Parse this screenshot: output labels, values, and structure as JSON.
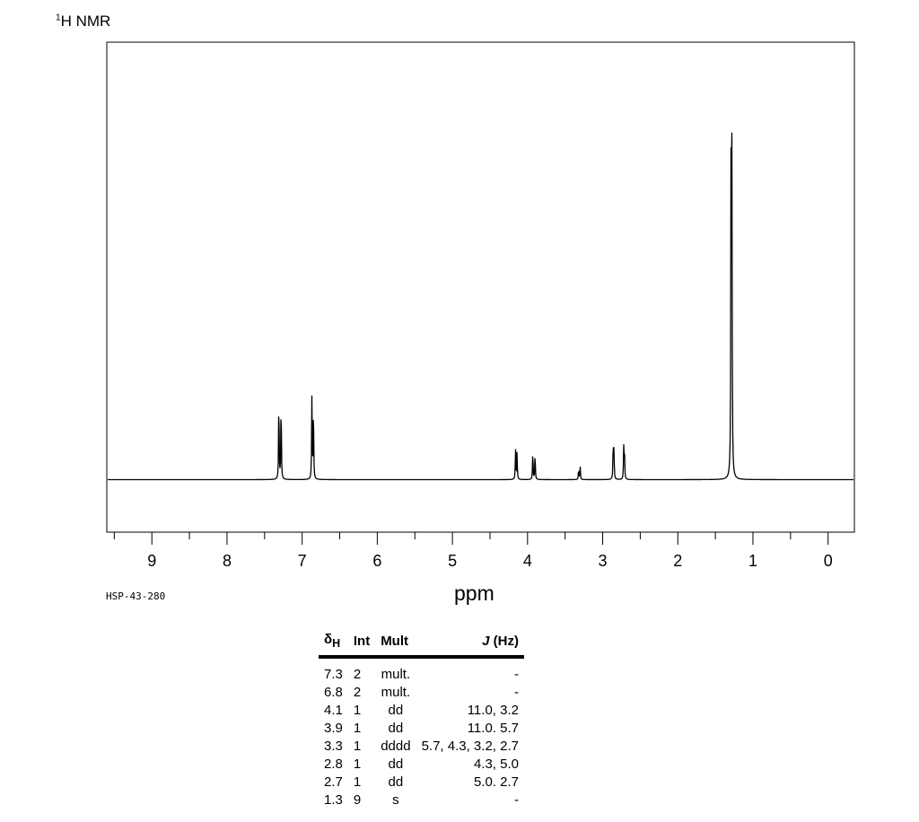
{
  "title_main": "H NMR",
  "title_sup": "1",
  "sample_id": "HSP-43-280",
  "chart_data": {
    "type": "line",
    "xlabel": "ppm",
    "xlim": [
      9.6,
      -0.35
    ],
    "x_ticks": [
      9,
      8,
      7,
      6,
      5,
      4,
      3,
      2,
      1,
      0
    ],
    "x_minor_step": 0.5,
    "ylim": [
      -0.12,
      1.0
    ],
    "baseline": 0.0,
    "peaks": [
      {
        "ppm": 7.31,
        "height": 0.2
      },
      {
        "ppm": 7.28,
        "height": 0.195
      },
      {
        "ppm": 6.87,
        "height": 0.19
      },
      {
        "ppm": 6.85,
        "height": 0.185
      },
      {
        "ppm": 4.16,
        "height": 0.07
      },
      {
        "ppm": 4.14,
        "height": 0.066
      },
      {
        "ppm": 3.93,
        "height": 0.068
      },
      {
        "ppm": 3.9,
        "height": 0.064
      },
      {
        "ppm": 3.32,
        "height": 0.025
      },
      {
        "ppm": 3.3,
        "height": 0.03
      },
      {
        "ppm": 2.86,
        "height": 0.085
      },
      {
        "ppm": 2.85,
        "height": 0.065
      },
      {
        "ppm": 2.72,
        "height": 0.072
      },
      {
        "ppm": 2.71,
        "height": 0.062
      },
      {
        "ppm": 1.29,
        "height": 0.95
      },
      {
        "ppm": 1.28,
        "height": 0.66
      }
    ]
  },
  "table": {
    "headers": {
      "shift": "δ",
      "shift_sub": "H",
      "int": "Int",
      "mult": "Mult",
      "j": "J",
      "j_unit": " (Hz)"
    },
    "rows": [
      {
        "shift": "7.3",
        "int": "2",
        "mult": "mult.",
        "j": "-"
      },
      {
        "shift": "6.8",
        "int": "2",
        "mult": "mult.",
        "j": "-"
      },
      {
        "shift": "4.1",
        "int": "1",
        "mult": "dd",
        "j": "11.0, 3.2"
      },
      {
        "shift": "3.9",
        "int": "1",
        "mult": "dd",
        "j": "11.0. 5.7"
      },
      {
        "shift": "3.3",
        "int": "1",
        "mult": "dddd",
        "j": "5.7, 4.3, 3.2, 2.7"
      },
      {
        "shift": "2.8",
        "int": "1",
        "mult": "dd",
        "j": "4.3, 5.0"
      },
      {
        "shift": "2.7",
        "int": "1",
        "mult": "dd",
        "j": "5.0. 2.7"
      },
      {
        "shift": "1.3",
        "int": "9",
        "mult": "s",
        "j": "-"
      }
    ]
  }
}
